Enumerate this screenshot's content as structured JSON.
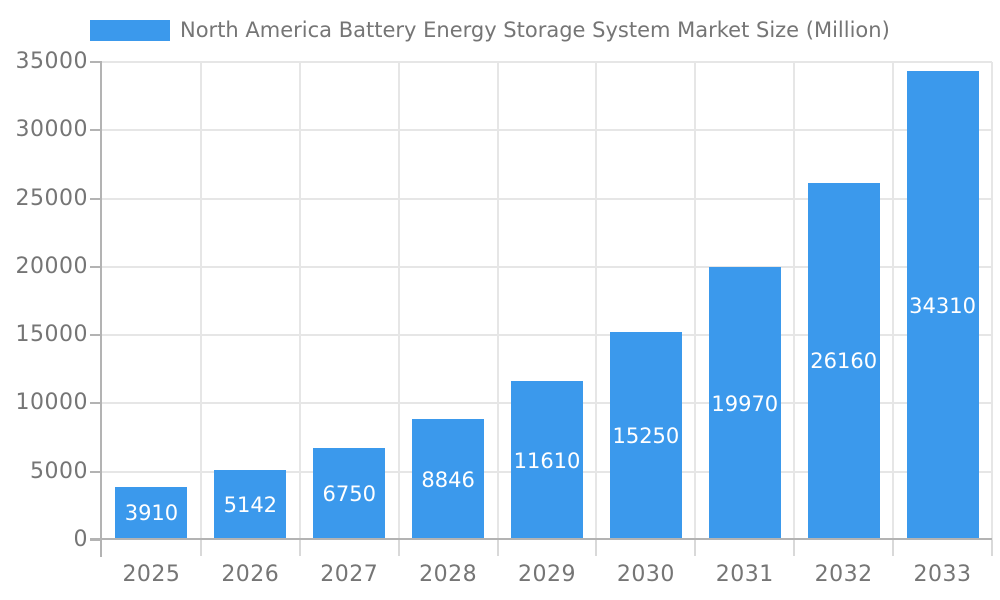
{
  "chart_data": {
    "type": "bar",
    "title": "North America Battery Energy Storage System Market Size (Million)",
    "categories": [
      "2025",
      "2026",
      "2027",
      "2028",
      "2029",
      "2030",
      "2031",
      "2032",
      "2033"
    ],
    "values": [
      3910,
      5142,
      6750,
      8846,
      11610,
      15250,
      19970,
      26160,
      34310
    ],
    "xlabel": "",
    "ylabel": "",
    "ylim": [
      0,
      35000
    ],
    "yticks": [
      0,
      5000,
      10000,
      15000,
      20000,
      25000,
      30000,
      35000
    ],
    "grid": true,
    "legend": {
      "position": "top-left"
    },
    "colors": {
      "bar": "#3b99ec",
      "bar_label_text": "#ffffff",
      "axis_text": "#757575",
      "gridline": "#e6e6e6",
      "axis_line": "#b3b3b3",
      "background": "#ffffff"
    }
  }
}
